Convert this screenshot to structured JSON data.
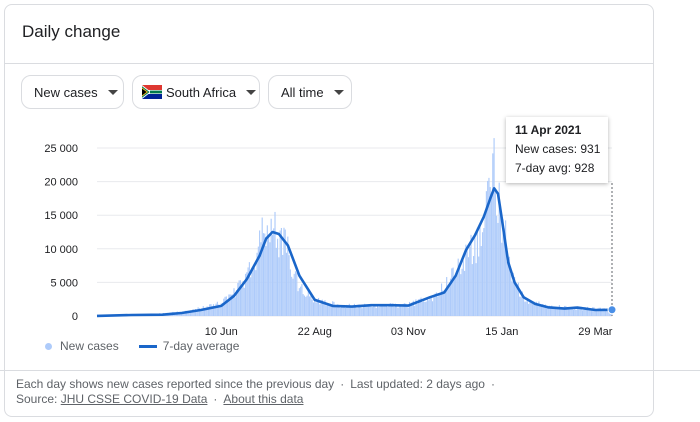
{
  "card": {
    "title": "Daily change"
  },
  "filters": {
    "metric": "New cases",
    "country": "South Africa",
    "period": "All time"
  },
  "tooltip": {
    "date": "11 Apr 2021",
    "new_cases": "New cases: 931",
    "avg": "7-day avg: 928"
  },
  "legend": {
    "bars": "New cases",
    "line": "7-day average"
  },
  "footer": {
    "line1": "Each day shows new cases reported since the previous day",
    "updated": "Last updated: 2 days ago",
    "source_label": "Source:",
    "source_link": "JHU CSSE COVID-19 Data",
    "about_link": "About this data"
  },
  "colors": {
    "bars": "#aecbfa",
    "line": "#1a66c9",
    "grid": "#e8eaed",
    "axis_text": "#202124"
  },
  "chart_data": {
    "type": "bar",
    "x_range": [
      "2020-03-05",
      "2021-04-11"
    ],
    "xticks": [
      {
        "date": "2020-06-10",
        "label": "10 Jun"
      },
      {
        "date": "2020-08-22",
        "label": "22 Aug"
      },
      {
        "date": "2020-11-03",
        "label": "03 Nov"
      },
      {
        "date": "2021-01-15",
        "label": "15 Jan"
      },
      {
        "date": "2021-03-29",
        "label": "29 Mar"
      }
    ],
    "yticks": [
      0,
      5000,
      10000,
      15000,
      20000,
      25000
    ],
    "ytick_labels": [
      "0",
      "5 000",
      "10 000",
      "15 000",
      "20 000",
      "25 000"
    ],
    "ylim": [
      0,
      25000
    ],
    "grid": true,
    "legend_position": "bottom-left",
    "series": [
      {
        "name": "7-day average",
        "kind": "line",
        "dates": [
          "2020-03-05",
          "2020-04-01",
          "2020-04-25",
          "2020-05-10",
          "2020-05-25",
          "2020-06-10",
          "2020-06-20",
          "2020-06-30",
          "2020-07-10",
          "2020-07-15",
          "2020-07-20",
          "2020-07-25",
          "2020-08-01",
          "2020-08-10",
          "2020-08-22",
          "2020-09-05",
          "2020-09-20",
          "2020-10-05",
          "2020-10-20",
          "2020-11-03",
          "2020-11-20",
          "2020-12-01",
          "2020-12-10",
          "2020-12-18",
          "2020-12-25",
          "2021-01-01",
          "2021-01-06",
          "2021-01-09",
          "2021-01-12",
          "2021-01-15",
          "2021-01-20",
          "2021-01-25",
          "2021-02-01",
          "2021-02-10",
          "2021-02-20",
          "2021-03-05",
          "2021-03-15",
          "2021-03-29",
          "2021-04-11"
        ],
        "values": [
          20,
          150,
          200,
          450,
          900,
          1500,
          3000,
          5500,
          9000,
          11500,
          12500,
          12200,
          10500,
          6000,
          2400,
          1500,
          1400,
          1600,
          1600,
          1550,
          2800,
          3500,
          6000,
          9800,
          12000,
          14800,
          17500,
          19000,
          18200,
          14500,
          8000,
          5000,
          2800,
          1800,
          1300,
          1100,
          1250,
          900,
          928
        ]
      },
      {
        "name": "New cases",
        "kind": "bar",
        "dates": [
          "2020-03-15",
          "2020-04-15",
          "2020-05-15",
          "2020-06-01",
          "2020-06-15",
          "2020-06-25",
          "2020-07-05",
          "2020-07-08",
          "2020-07-12",
          "2020-07-16",
          "2020-07-20",
          "2020-07-24",
          "2020-07-28",
          "2020-08-01",
          "2020-08-06",
          "2020-08-12",
          "2020-08-22",
          "2020-09-10",
          "2020-10-10",
          "2020-11-03",
          "2020-11-25",
          "2020-12-10",
          "2020-12-20",
          "2020-12-28",
          "2021-01-02",
          "2021-01-06",
          "2021-01-08",
          "2021-01-10",
          "2021-01-13",
          "2021-01-17",
          "2021-01-22",
          "2021-01-28",
          "2021-02-05",
          "2021-02-20",
          "2021-03-15",
          "2021-04-11"
        ],
        "values": [
          80,
          250,
          700,
          1500,
          2500,
          4600,
          7800,
          10000,
          13000,
          12500,
          13700,
          12000,
          11500,
          10800,
          6000,
          4000,
          2500,
          1600,
          1500,
          1700,
          3200,
          6500,
          10500,
          11000,
          15000,
          20000,
          22000,
          21800,
          17000,
          13000,
          7000,
          4200,
          2200,
          1500,
          1200,
          931
        ]
      }
    ]
  }
}
